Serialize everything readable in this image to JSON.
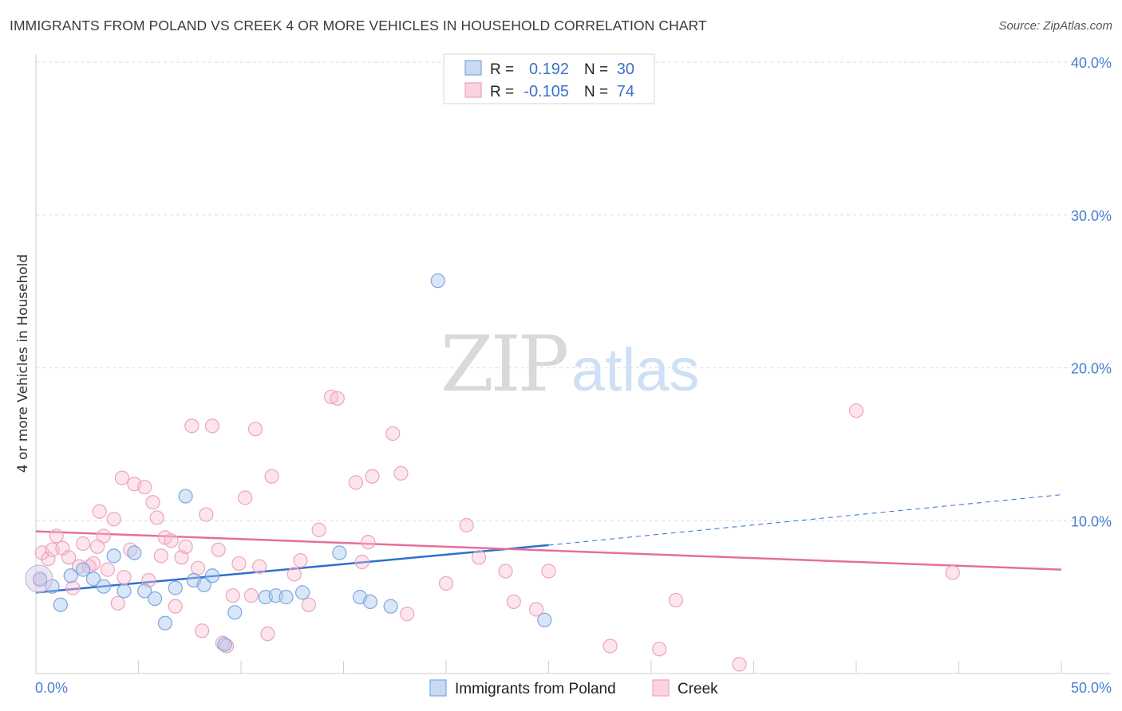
{
  "header": {
    "title": "IMMIGRANTS FROM POLAND VS CREEK 4 OR MORE VEHICLES IN HOUSEHOLD CORRELATION CHART",
    "source": "Source: ZipAtlas.com"
  },
  "watermark": {
    "part1": "ZIP",
    "part2": "atlas"
  },
  "legend": {
    "rows": [
      {
        "r_label": "R =",
        "r_value": "0.192",
        "n_label": "N =",
        "n_value": "30"
      },
      {
        "r_label": "R =",
        "r_value": "-0.105",
        "n_label": "N =",
        "n_value": "74"
      }
    ]
  },
  "chart_data": {
    "type": "scatter",
    "title": "IMMIGRANTS FROM POLAND VS CREEK 4 OR MORE VEHICLES IN HOUSEHOLD CORRELATION CHART",
    "xlabel": "",
    "ylabel": "4 or more Vehicles in Household",
    "xlim": [
      0,
      50
    ],
    "ylim": [
      0,
      40
    ],
    "x_ticks_labeled": [
      "0.0%",
      "50.0%"
    ],
    "y_ticks_labeled": [
      "10.0%",
      "20.0%",
      "30.0%",
      "40.0%"
    ],
    "y_tick_values": [
      10,
      20,
      30,
      40
    ],
    "grid": "horizontal dashed",
    "legend_position": "top-center",
    "colors": {
      "poland": "#7ea6e0",
      "creek": "#f0a0bc",
      "poland_line": "#2f6fce",
      "creek_line": "#e4709a"
    },
    "series": [
      {
        "name": "Immigrants from Poland",
        "color": "#7ea6e0",
        "trend": {
          "x": [
            0,
            25
          ],
          "y": [
            5.3,
            8.4
          ],
          "dashed_to": [
            50,
            11.7
          ]
        },
        "points": [
          [
            0.2,
            6.2
          ],
          [
            0.8,
            5.7
          ],
          [
            1.2,
            4.5
          ],
          [
            1.7,
            6.4
          ],
          [
            2.3,
            6.8
          ],
          [
            2.8,
            6.2
          ],
          [
            3.3,
            5.7
          ],
          [
            3.8,
            7.7
          ],
          [
            4.3,
            5.4
          ],
          [
            4.8,
            7.9
          ],
          [
            5.3,
            5.4
          ],
          [
            5.8,
            4.9
          ],
          [
            6.3,
            3.3
          ],
          [
            6.8,
            5.6
          ],
          [
            7.3,
            11.6
          ],
          [
            7.7,
            6.1
          ],
          [
            8.2,
            5.8
          ],
          [
            8.6,
            6.4
          ],
          [
            9.2,
            1.9
          ],
          [
            9.7,
            4.0
          ],
          [
            11.2,
            5.0
          ],
          [
            11.7,
            5.1
          ],
          [
            12.2,
            5.0
          ],
          [
            13.0,
            5.3
          ],
          [
            14.8,
            7.9
          ],
          [
            15.8,
            5.0
          ],
          [
            16.3,
            4.7
          ],
          [
            17.3,
            4.4
          ],
          [
            19.6,
            25.7
          ],
          [
            24.8,
            3.5
          ]
        ]
      },
      {
        "name": "Creek",
        "color": "#f0a0bc",
        "trend": {
          "x": [
            0,
            50
          ],
          "y": [
            9.3,
            6.8
          ]
        },
        "points": [
          [
            0.3,
            7.9
          ],
          [
            0.6,
            7.5
          ],
          [
            0.8,
            8.1
          ],
          [
            1.0,
            9.0
          ],
          [
            1.3,
            8.2
          ],
          [
            1.6,
            7.6
          ],
          [
            1.8,
            5.6
          ],
          [
            2.1,
            7.0
          ],
          [
            2.3,
            8.5
          ],
          [
            2.6,
            7.0
          ],
          [
            2.8,
            7.2
          ],
          [
            3.0,
            8.3
          ],
          [
            3.1,
            10.6
          ],
          [
            3.3,
            9.0
          ],
          [
            3.5,
            6.8
          ],
          [
            3.8,
            10.1
          ],
          [
            4.0,
            4.6
          ],
          [
            4.2,
            12.8
          ],
          [
            4.3,
            6.3
          ],
          [
            4.6,
            8.1
          ],
          [
            4.8,
            12.4
          ],
          [
            5.3,
            12.2
          ],
          [
            5.5,
            6.1
          ],
          [
            5.7,
            11.2
          ],
          [
            5.9,
            10.2
          ],
          [
            6.1,
            7.7
          ],
          [
            6.3,
            8.9
          ],
          [
            6.6,
            8.7
          ],
          [
            6.8,
            4.4
          ],
          [
            7.1,
            7.6
          ],
          [
            7.3,
            8.3
          ],
          [
            7.6,
            16.2
          ],
          [
            7.9,
            6.9
          ],
          [
            8.1,
            2.8
          ],
          [
            8.3,
            10.4
          ],
          [
            8.6,
            16.2
          ],
          [
            8.9,
            8.1
          ],
          [
            9.1,
            2.0
          ],
          [
            9.3,
            1.8
          ],
          [
            9.6,
            5.1
          ],
          [
            9.9,
            7.2
          ],
          [
            10.2,
            11.5
          ],
          [
            10.5,
            5.1
          ],
          [
            10.7,
            16.0
          ],
          [
            10.9,
            7.0
          ],
          [
            11.3,
            2.6
          ],
          [
            11.5,
            12.9
          ],
          [
            12.6,
            6.5
          ],
          [
            12.9,
            7.4
          ],
          [
            13.3,
            4.5
          ],
          [
            13.8,
            9.4
          ],
          [
            14.4,
            18.1
          ],
          [
            14.7,
            18.0
          ],
          [
            15.6,
            12.5
          ],
          [
            15.9,
            7.3
          ],
          [
            16.2,
            8.6
          ],
          [
            16.4,
            12.9
          ],
          [
            17.4,
            15.7
          ],
          [
            17.8,
            13.1
          ],
          [
            18.1,
            3.9
          ],
          [
            20.0,
            5.9
          ],
          [
            21.0,
            9.7
          ],
          [
            21.6,
            7.6
          ],
          [
            22.9,
            6.7
          ],
          [
            23.3,
            4.7
          ],
          [
            24.4,
            4.2
          ],
          [
            25.0,
            6.7
          ],
          [
            28.0,
            1.8
          ],
          [
            30.4,
            1.6
          ],
          [
            31.2,
            4.8
          ],
          [
            34.3,
            0.6
          ],
          [
            40.0,
            17.2
          ],
          [
            44.7,
            6.6
          ],
          [
            0.2,
            6.1
          ]
        ]
      }
    ]
  },
  "bottom_legend": [
    {
      "label": "Immigrants from Poland"
    },
    {
      "label": "Creek"
    }
  ]
}
